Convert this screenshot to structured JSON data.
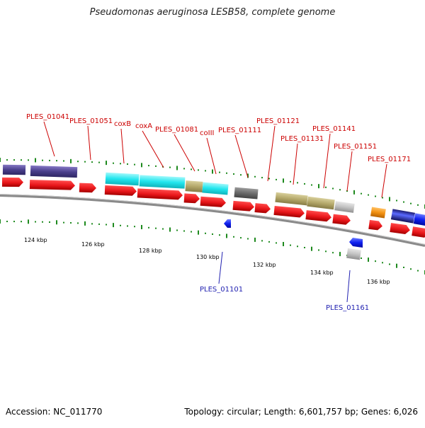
{
  "title": "Pseudomonas aeruginosa LESB58, complete genome",
  "footer": {
    "accession": "Accession: NC_011770",
    "summary": "Topology: circular; Length: 6,601,757 bp; Genes: 6,026"
  },
  "colors": {
    "cds": "#e8161a",
    "cds_dark": "#a40000",
    "tick": "#1e8a1e",
    "forward_label": "#cc0000",
    "reverse_label": "#1f1fb0",
    "backbone": "#8a8a8a",
    "navy": "#4a3f8c",
    "cyan": "#22e6ee",
    "khaki": "#b4a86a",
    "darkgray": "#6b6b6b",
    "silver": "#c2c2c2",
    "orange": "#f39111",
    "blue": "#0f20f0"
  },
  "scale": {
    "labels": [
      "124 kbp",
      "126 kbp",
      "128 kbp",
      "130 kbp",
      "132 kbp",
      "134 kbp",
      "136 kbp"
    ]
  },
  "forward_gene_labels": [
    "PLES_01041",
    "PLES_01051",
    "coxB",
    "coxA",
    "PLES_01081",
    "coIII",
    "PLES_01111",
    "PLES_01121",
    "PLES_01131",
    "PLES_01141",
    "PLES_01151",
    "PLES_01171"
  ],
  "reverse_gene_labels": [
    "PLES_01101",
    "PLES_01161"
  ]
}
